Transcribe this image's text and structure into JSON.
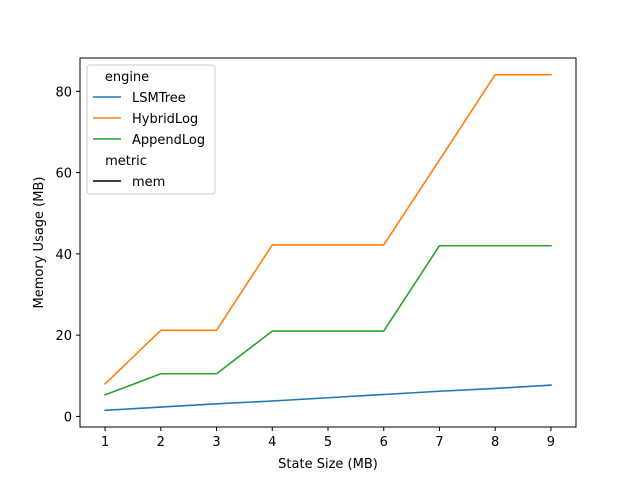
{
  "chart_data": {
    "type": "line",
    "title": "",
    "xlabel": "State Size (MB)",
    "ylabel": "Memory Usage (MB)",
    "x": [
      1,
      2,
      3,
      4,
      5,
      6,
      7,
      8,
      9
    ],
    "xlim": [
      0.55,
      9.45
    ],
    "ylim": [
      -2.6,
      88.2
    ],
    "xticks": [
      1,
      2,
      3,
      4,
      5,
      6,
      7,
      8,
      9
    ],
    "yticks": [
      0,
      20,
      40,
      60,
      80
    ],
    "grid": false,
    "legend": {
      "placement": "upper-left",
      "groups": [
        {
          "title": "engine",
          "entries": [
            "LSMTree",
            "HybridLog",
            "AppendLog"
          ]
        },
        {
          "title": "metric",
          "entries": [
            "mem"
          ]
        }
      ]
    },
    "series": [
      {
        "name": "LSMTree",
        "color": "#1f77b4",
        "values": [
          1.5,
          2.3,
          3.1,
          3.8,
          4.6,
          5.4,
          6.2,
          6.9,
          7.7
        ]
      },
      {
        "name": "HybridLog",
        "color": "#ff7f0e",
        "values": [
          8.0,
          21.2,
          21.2,
          42.2,
          42.2,
          42.2,
          63.1,
          84.1,
          84.1
        ]
      },
      {
        "name": "AppendLog",
        "color": "#2ca02c",
        "values": [
          5.3,
          10.5,
          10.5,
          21.0,
          21.0,
          21.0,
          42.0,
          42.0,
          42.0
        ]
      }
    ],
    "metric_color": "#000000"
  }
}
